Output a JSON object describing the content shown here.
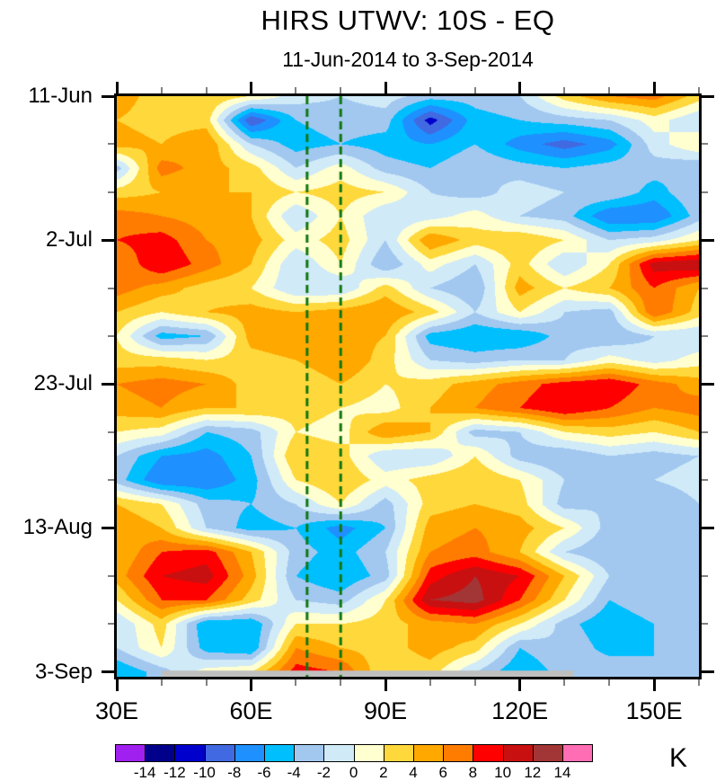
{
  "header": {
    "title": "HIRS UTWV: 10S - EQ",
    "subtitle": "11-Jun-2014 to 3-Sep-2014"
  },
  "colorbar": {
    "unit_label": "K",
    "tick_labels": [
      "-14",
      "-12",
      "-10",
      "-8",
      "-6",
      "-4",
      "-2",
      "0",
      "2",
      "4",
      "6",
      "8",
      "10",
      "12",
      "14"
    ],
    "colors": [
      "#A020F0",
      "#00008B",
      "#0000CD",
      "#4169E1",
      "#1E90FF",
      "#00BFFF",
      "#A2C8F0",
      "#D0EAF8",
      "#FFFFD0",
      "#FFD83C",
      "#FFA800",
      "#FF7C00",
      "#FF0000",
      "#C81010",
      "#A23535",
      "#FF6EB4"
    ]
  },
  "chart_data": {
    "type": "heatmap",
    "title": "HIRS UTWV: 10S - EQ",
    "subtitle": "11-Jun-2014 to 3-Sep-2014",
    "units": "K",
    "start_date": "11-Jun-2014",
    "end_date": "3-Sep-2014",
    "xlim_lon": [
      30,
      160
    ],
    "ylim_days": [
      0,
      84.7
    ],
    "x_lons": [
      30,
      40,
      50,
      60,
      70,
      80,
      90,
      100,
      110,
      120,
      130,
      140,
      150,
      160
    ],
    "y_days_since_start": [
      0,
      3.5,
      7,
      10.5,
      14,
      17.5,
      21,
      24.5,
      28,
      31.5,
      35,
      38.5,
      42,
      45.5,
      49,
      52.5,
      56,
      59.5,
      63,
      66.5,
      70,
      73.5,
      77,
      80.5,
      84
    ],
    "x_ticks_major": [
      {
        "lon": 30,
        "label": "30E"
      },
      {
        "lon": 60,
        "label": "60E"
      },
      {
        "lon": 90,
        "label": "90E"
      },
      {
        "lon": 120,
        "label": "120E"
      },
      {
        "lon": 150,
        "label": "150E"
      }
    ],
    "x_ticks_minor_lons": [
      40,
      50,
      70,
      80,
      100,
      110,
      130,
      140,
      160
    ],
    "y_ticks_major": [
      {
        "day": 0,
        "label": "11-Jun"
      },
      {
        "day": 21,
        "label": "2-Jul"
      },
      {
        "day": 42,
        "label": "23-Jul"
      },
      {
        "day": 63,
        "label": "13-Aug"
      },
      {
        "day": 84,
        "label": "3-Sep"
      }
    ],
    "y_ticks_minor_days": [
      7,
      14,
      28,
      35,
      49,
      56,
      70,
      77
    ],
    "contour_levels": [
      -14,
      -12,
      -10,
      -8,
      -6,
      -4,
      -2,
      0,
      2,
      4,
      6,
      8,
      10,
      12,
      14
    ],
    "palette": [
      "#A020F0",
      "#00008B",
      "#0000CD",
      "#4169E1",
      "#1E90FF",
      "#00BFFF",
      "#A2C8F0",
      "#D0EAF8",
      "#FFFFD0",
      "#FFD83C",
      "#FFA800",
      "#FF7C00",
      "#FF0000",
      "#C81010",
      "#A23535",
      "#FF6EB4"
    ],
    "values_note": "anomaly (K) estimated from filled contours on a 10-deg x 3.5-day grid",
    "values": [
      [
        5,
        3,
        4,
        2,
        -1,
        -2,
        -1,
        -3,
        -3,
        -2,
        3,
        6,
        7,
        3
      ],
      [
        4,
        3,
        3,
        -10,
        -4,
        -3,
        -3,
        -11,
        -5,
        -4,
        -3,
        -2,
        1,
        -2
      ],
      [
        5,
        4,
        6,
        -2,
        -5,
        -4,
        -5,
        -6,
        -4,
        -7,
        -9,
        -7,
        -1,
        2
      ],
      [
        -3,
        7,
        5,
        3,
        -2,
        1,
        -3,
        -4,
        -2,
        -3,
        -4,
        -3,
        -3,
        -4
      ],
      [
        3,
        4,
        4,
        4,
        2,
        3,
        2,
        -2,
        -3,
        -1,
        -2,
        -2,
        -5,
        -2
      ],
      [
        7,
        6,
        5,
        4,
        -2,
        2,
        -2,
        -1,
        1,
        -2,
        -3,
        -8,
        -8,
        -3
      ],
      [
        8,
        9,
        6,
        5,
        1,
        3,
        -2,
        6,
        3,
        4,
        2,
        -2,
        -1,
        2
      ],
      [
        6,
        10,
        7,
        4,
        -2,
        2,
        -4,
        1,
        -2,
        3,
        -2,
        2,
        11,
        12
      ],
      [
        7,
        5,
        3,
        2,
        -2,
        -2,
        3,
        -2,
        -4,
        5,
        2,
        4,
        8,
        4
      ],
      [
        4,
        2,
        4,
        5,
        4,
        5,
        6,
        3,
        -2,
        2,
        -2,
        -3,
        8,
        3
      ],
      [
        2,
        -5,
        -4,
        5,
        6,
        5,
        4,
        -5,
        -6,
        -6,
        -3,
        -4,
        -2,
        -2
      ],
      [
        3,
        3,
        2,
        3,
        4,
        6,
        3,
        -2,
        -3,
        -2,
        -2,
        1,
        -1,
        1
      ],
      [
        6,
        7,
        6,
        3,
        2,
        4,
        2,
        3,
        5,
        7,
        9,
        10,
        7,
        5
      ],
      [
        5,
        6,
        4,
        4,
        3,
        2,
        1,
        4,
        6,
        8,
        10,
        8,
        6,
        7
      ],
      [
        2,
        1,
        -4,
        -3,
        2,
        1,
        6,
        4,
        -3,
        -2,
        2,
        3,
        2,
        4
      ],
      [
        -2,
        -6,
        -7,
        -4,
        4,
        3,
        -2,
        -2,
        2,
        -3,
        -4,
        -2,
        -3,
        -2
      ],
      [
        -3,
        -8,
        -8,
        -5,
        2,
        4,
        1,
        3,
        4,
        2,
        -2,
        -4,
        -2,
        -1
      ],
      [
        4,
        2,
        -3,
        -4,
        -2,
        2,
        -3,
        3,
        4,
        3,
        -3,
        -2,
        -4,
        -2
      ],
      [
        6,
        4,
        -2,
        -5,
        -4,
        -7,
        -4,
        5,
        6,
        5,
        2,
        -3,
        -2,
        -3
      ],
      [
        4,
        8,
        9,
        4,
        -3,
        -5,
        -2,
        6,
        7,
        4,
        -2,
        -4,
        -3,
        -2
      ],
      [
        5,
        10,
        11,
        5,
        -4,
        -6,
        -3,
        9,
        12,
        10,
        4,
        -2,
        -3,
        -4
      ],
      [
        2,
        8,
        8,
        3,
        -2,
        -3,
        2,
        12,
        13,
        8,
        2,
        -4,
        -2,
        -2
      ],
      [
        -2,
        3,
        -6,
        -6,
        2,
        2,
        3,
        5,
        6,
        2,
        -3,
        -6,
        -4,
        -3
      ],
      [
        -2,
        2,
        -5,
        -6,
        6,
        4,
        3,
        5,
        3,
        -4,
        -2,
        -5,
        -4,
        -3
      ],
      [
        -6,
        -3,
        1,
        2,
        9,
        8,
        2,
        3,
        -2,
        -6,
        -3,
        -2,
        -4,
        -2
      ]
    ],
    "reference_lines": {
      "lons": [
        72.5,
        80
      ],
      "color": "#117711",
      "style": "dashed"
    },
    "missing_strip": {
      "lon_from": 40,
      "lon_to": 132,
      "day_from": 83.8,
      "day_to": 84.7,
      "color": "#BFBFBF"
    },
    "legend_position": "bottom-colorbar",
    "grid": false
  }
}
